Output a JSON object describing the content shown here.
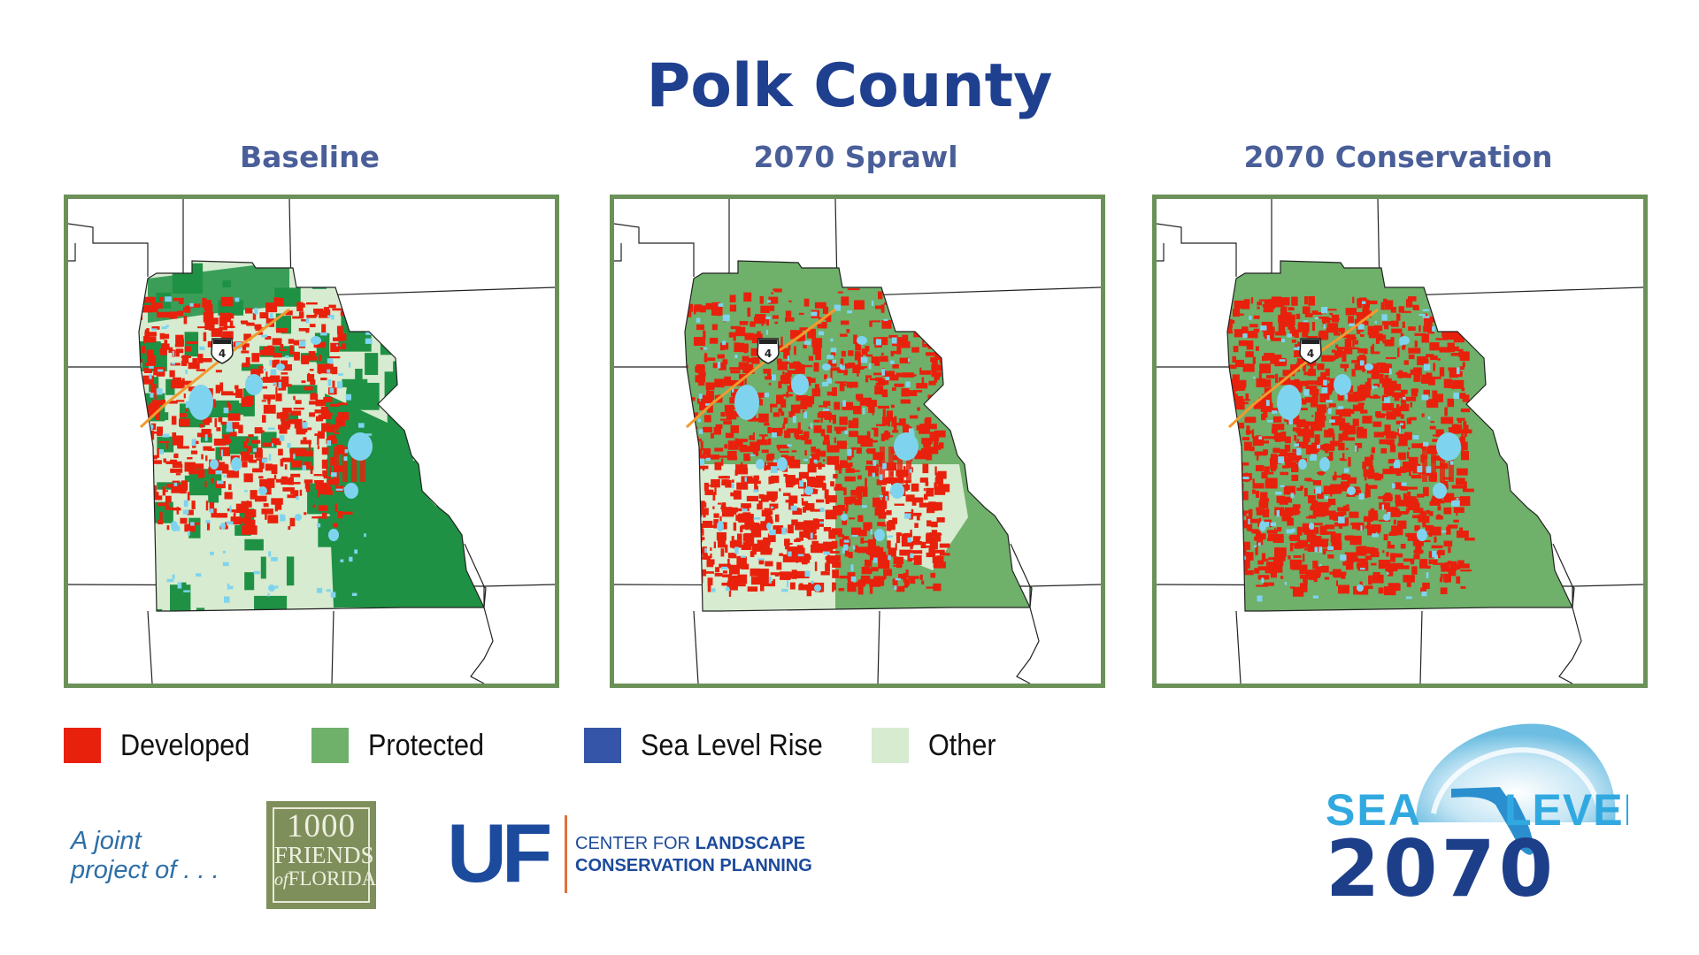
{
  "title": "Polk County",
  "panels": [
    {
      "label": "Baseline",
      "scenario": "baseline"
    },
    {
      "label": "2070 Sprawl",
      "scenario": "sprawl"
    },
    {
      "label": "2070 Conservation",
      "scenario": "conservation"
    }
  ],
  "highway_shield": "4",
  "legend": [
    {
      "label": "Developed",
      "color": "#e8210d"
    },
    {
      "label": "Protected",
      "color": "#6fb06a"
    },
    {
      "label": "Sea Level Rise",
      "color": "#3556a8"
    },
    {
      "label": "Other",
      "color": "#d6ebcf"
    }
  ],
  "colors": {
    "frame": "#6b9158",
    "baseline_protected": "#1f9144",
    "protected": "#6fb06a",
    "developed": "#e8210d",
    "other": "#d6ebcf",
    "water": "#7ed4ef",
    "highway": "#f29a2e"
  },
  "footer": {
    "joint_line1": "A joint",
    "joint_line2": "project of . . .",
    "friends_line1": "1000",
    "friends_line2": "FRIENDS",
    "friends_line3_small": "of",
    "friends_line3": "FLORIDA",
    "uf": "UF",
    "clcp_line1_a": "CENTER FOR ",
    "clcp_line1_b": "LANDSCAPE",
    "clcp_line2": "CONSERVATION PLANNING"
  },
  "logo": {
    "word1": "SEA",
    "word2": "LEVEL",
    "year": "2070"
  }
}
